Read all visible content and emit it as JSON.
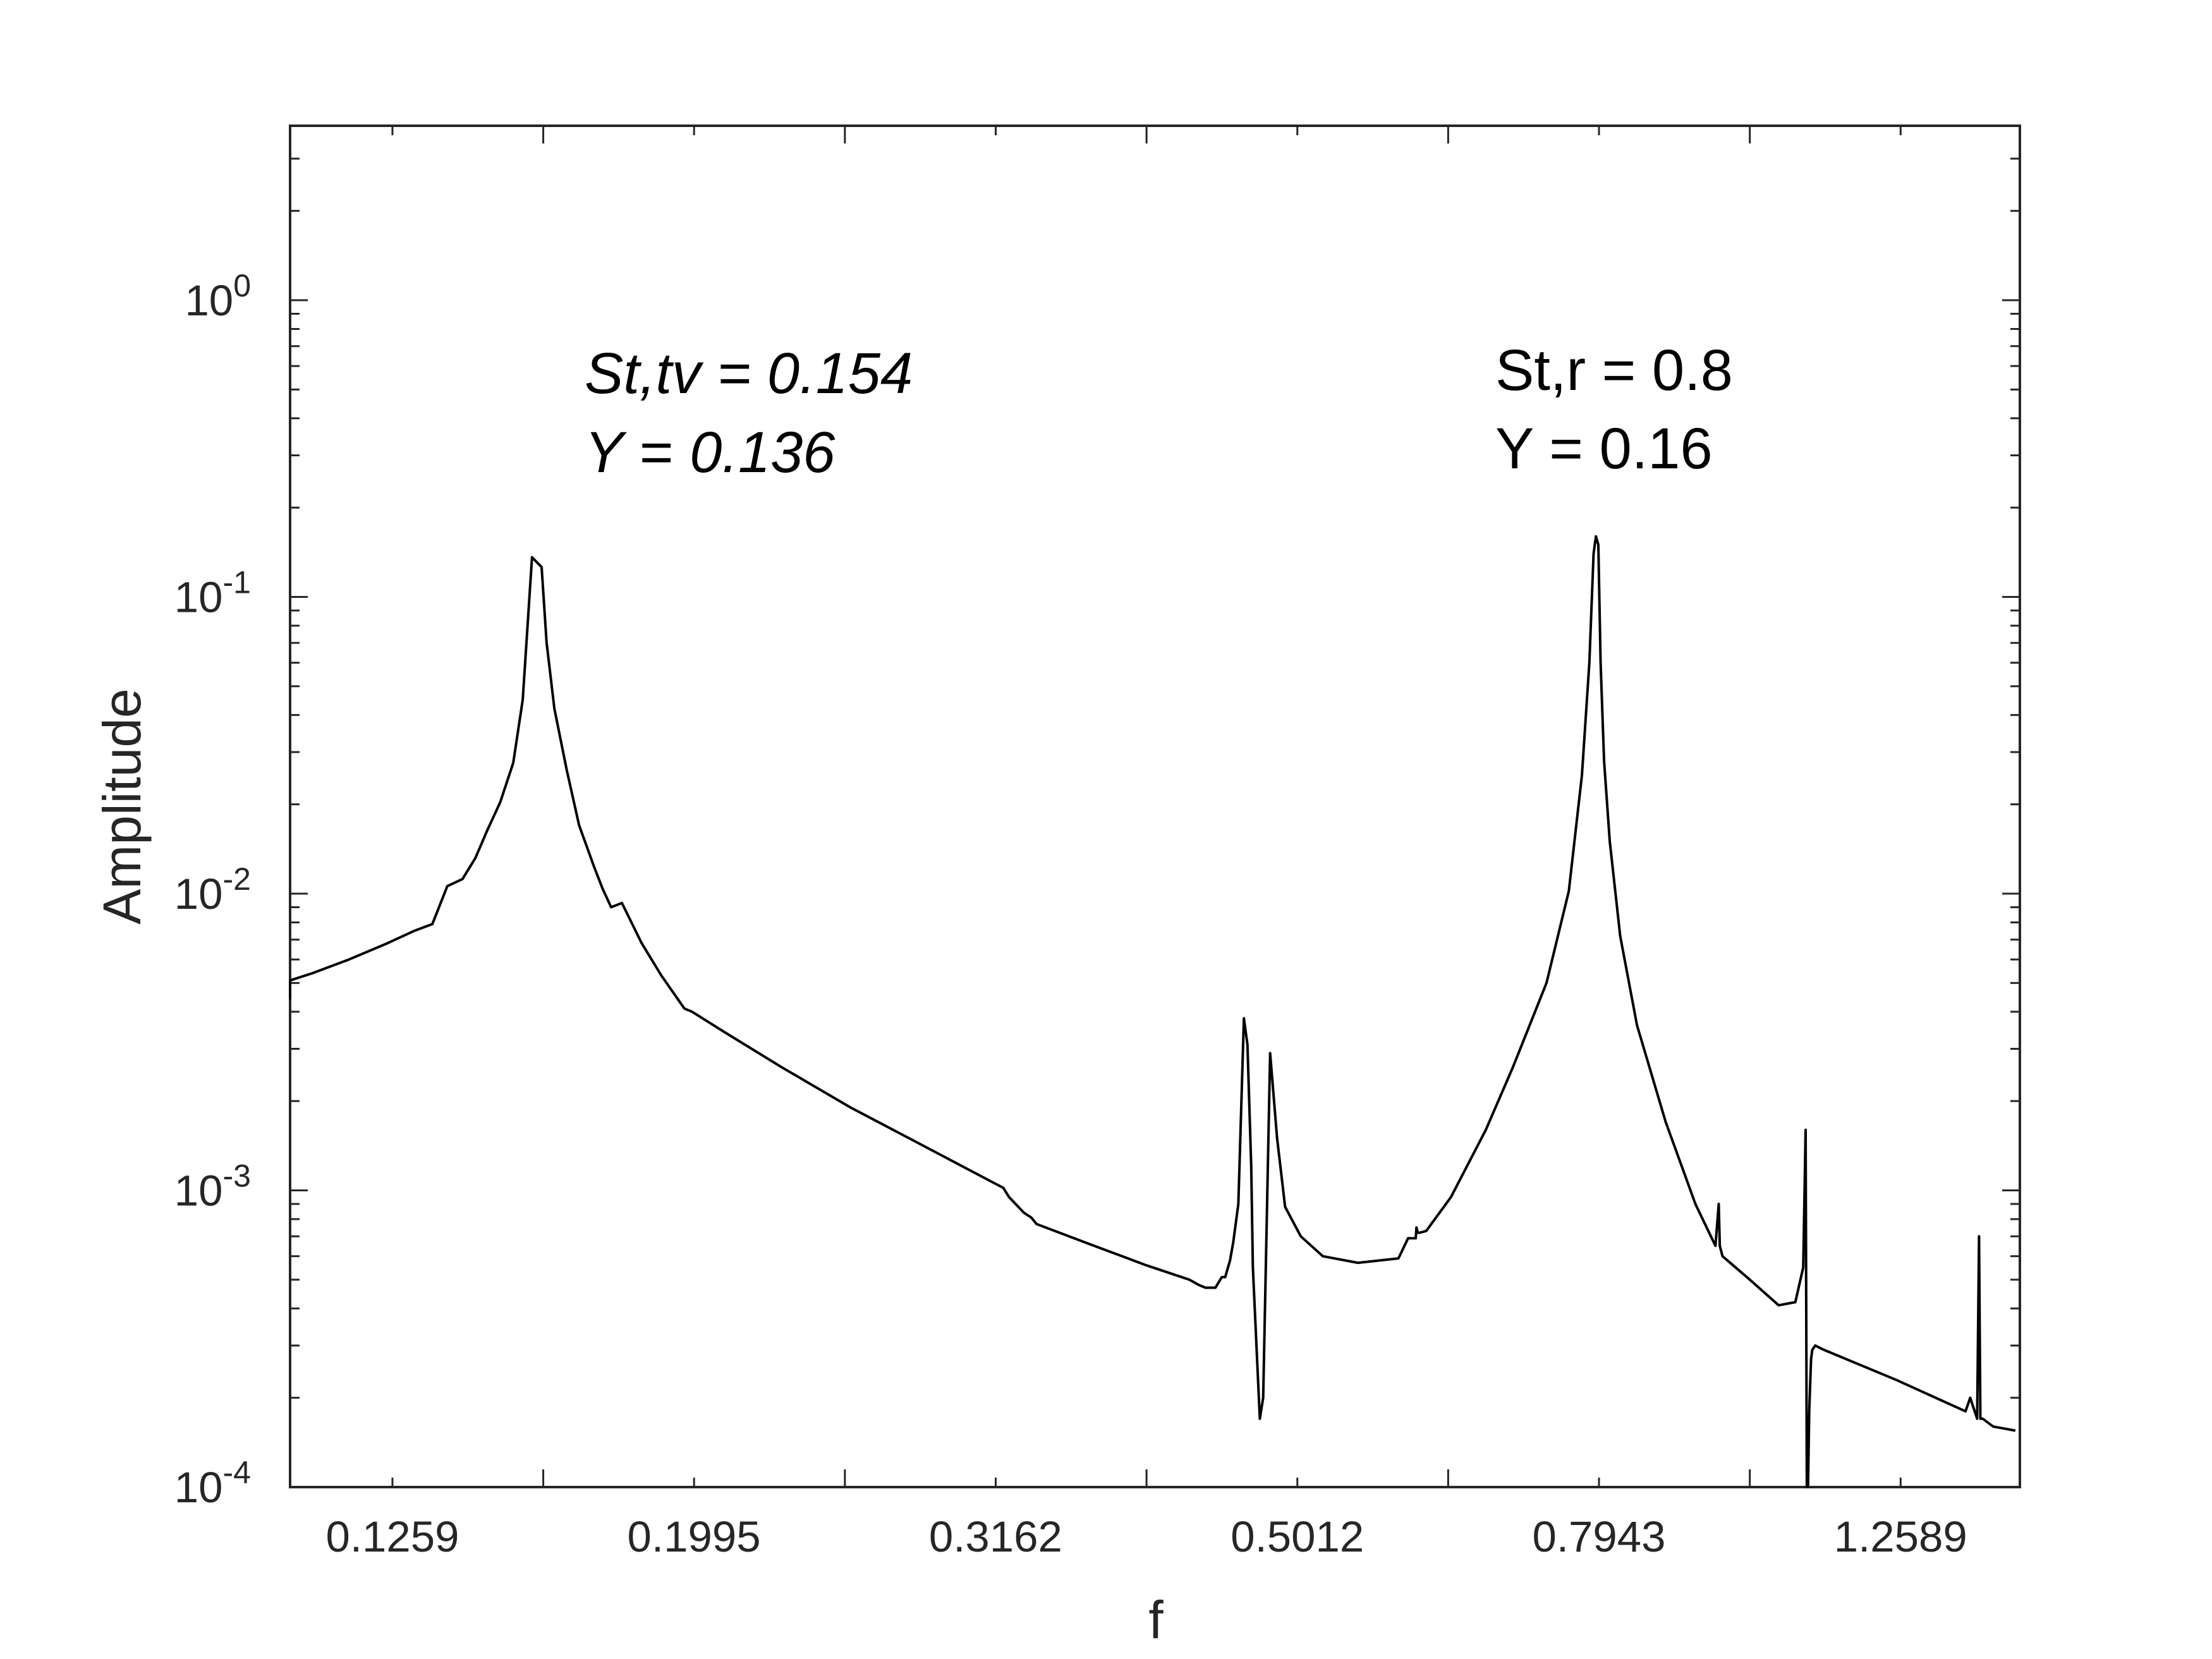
{
  "chart_data": {
    "type": "line",
    "xlabel": "f",
    "ylabel": "Amplitude",
    "x_scale": "log",
    "y_scale": "log",
    "xlim": [
      0.1,
      1.6
    ],
    "ylim": [
      0.0001,
      5
    ],
    "grid": false,
    "x_ticks": [
      {
        "value": 0.1259,
        "label": "0.1259"
      },
      {
        "value": 0.1995,
        "label": "0.1995"
      },
      {
        "value": 0.3162,
        "label": "0.3162"
      },
      {
        "value": 0.5012,
        "label": "0.5012"
      },
      {
        "value": 0.7943,
        "label": "0.7943"
      },
      {
        "value": 1.2589,
        "label": "1.2589"
      }
    ],
    "y_ticks": [
      {
        "value": 0.0001,
        "base": "10",
        "exp": "-4"
      },
      {
        "value": 0.001,
        "base": "10",
        "exp": "-3"
      },
      {
        "value": 0.01,
        "base": "10",
        "exp": "-2"
      },
      {
        "value": 0.1,
        "base": "10",
        "exp": "-1"
      },
      {
        "value": 1,
        "base": "10",
        "exp": "0"
      }
    ],
    "annotations": [
      {
        "prefix": "St,tv",
        "value": "0.154",
        "line2_prefix": "Y",
        "line2_value": "0.136",
        "italic": true
      },
      {
        "prefix": "St,r",
        "value": "0.8",
        "line2_prefix": "Y",
        "line2_value": "0.16",
        "italic": false
      }
    ],
    "color": "#000000",
    "series": [
      {
        "x": [
          0.1,
          0.1038,
          0.1069,
          0.1115,
          0.1178,
          0.1249,
          0.1302,
          0.1338,
          0.1369,
          0.1401,
          0.1429,
          0.1454,
          0.1484,
          0.1514,
          0.1536,
          0.1558,
          0.1581,
          0.1593,
          0.1612,
          0.1643,
          0.1674,
          0.1713,
          0.1735,
          0.1758,
          0.1787,
          0.1842,
          0.1898,
          0.1966,
          0.1989,
          0.2093,
          0.2281,
          0.2535,
          0.2827,
          0.3153,
          0.3199,
          0.3227,
          0.3302,
          0.3339,
          0.3366,
          0.3647,
          0.3976,
          0.425,
          0.4312,
          0.4356,
          0.4423,
          0.4466,
          0.4489,
          0.4522,
          0.4545,
          0.458,
          0.4619,
          0.4644,
          0.4671,
          0.4683,
          0.4702,
          0.4733,
          0.4757,
          0.4808,
          0.4859,
          0.4919,
          0.5038,
          0.5211,
          0.5498,
          0.5848,
          0.5935,
          0.6005,
          0.6011,
          0.6023,
          0.6041,
          0.6102,
          0.6337,
          0.6683,
          0.6965,
          0.7332,
          0.7586,
          0.7739,
          0.7827,
          0.7878,
          0.7906,
          0.7935,
          0.7963,
          0.8005,
          0.8075,
          0.8205,
          0.8418,
          0.8795,
          0.9203,
          0.9489,
          0.9537,
          0.9552,
          0.9592,
          1.0,
          1.045,
          1.072,
          1.085,
          1.089,
          1.091,
          1.093,
          1.095,
          1.098,
          1.1,
          1.105,
          1.12,
          1.25,
          1.39,
          1.4,
          1.415,
          1.419,
          1.422,
          1.427,
          1.45,
          1.5
        ],
        "y": [
          0.0044,
          0.0048,
          0.0051,
          0.0054,
          0.006,
          0.0068,
          0.0075,
          0.0079,
          0.0106,
          0.0112,
          0.0132,
          0.0162,
          0.0203,
          0.0276,
          0.045,
          0.136,
          0.126,
          0.07,
          0.042,
          0.026,
          0.017,
          0.0123,
          0.0104,
          0.009,
          0.0093,
          0.0068,
          0.0053,
          0.0041,
          0.004,
          0.0034,
          0.0026,
          0.0019,
          0.00142,
          0.00106,
          0.00102,
          0.00095,
          0.00084,
          0.00081,
          0.00077,
          0.00066,
          0.00056,
          0.0005,
          0.00048,
          0.00047,
          0.00047,
          0.00051,
          0.00051,
          0.00058,
          0.00067,
          0.0009,
          0.0038,
          0.0031,
          0.0012,
          0.00055,
          0.00035,
          0.00017,
          0.0002,
          0.0029,
          0.0015,
          0.00088,
          0.0007,
          0.0006,
          0.00057,
          0.00059,
          0.00069,
          0.00069,
          0.00075,
          0.00072,
          0.00072,
          0.00073,
          0.00095,
          0.0016,
          0.0026,
          0.005,
          0.0102,
          0.025,
          0.06,
          0.14,
          0.16,
          0.15,
          0.06,
          0.028,
          0.015,
          0.0072,
          0.0036,
          0.0017,
          0.0009,
          0.00065,
          0.0009,
          0.00065,
          0.0006,
          0.0005,
          0.00041,
          0.00042,
          0.00055,
          0.0016,
          8e-05,
          8e-05,
          0.00018,
          0.00027,
          0.00029,
          0.0003,
          0.00029,
          0.00023,
          0.00018,
          0.0002,
          0.00017,
          0.0007,
          0.00017,
          0.00017,
          0.00016,
          0.000155
        ]
      }
    ]
  }
}
